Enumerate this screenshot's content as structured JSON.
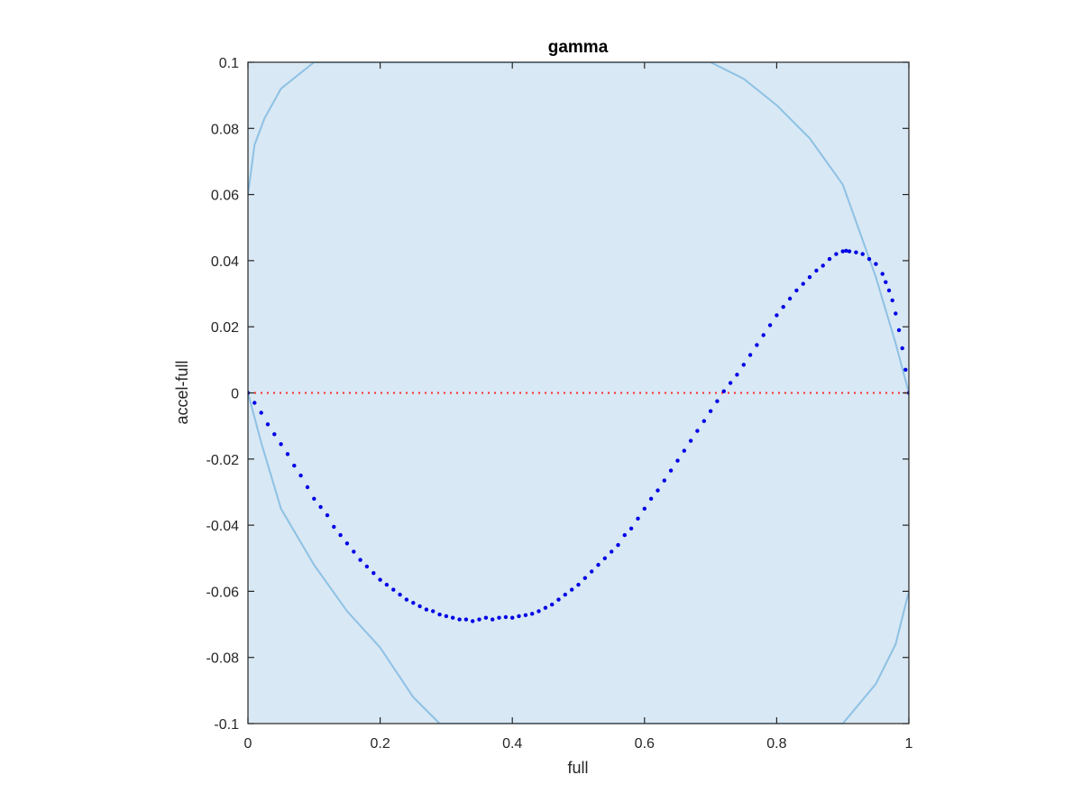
{
  "chart_data": {
    "type": "scatter",
    "title": "gamma",
    "xlabel": "full",
    "ylabel": "accel-full",
    "xlim": [
      0,
      1
    ],
    "ylim": [
      -0.1,
      0.1
    ],
    "xticks": [
      0,
      0.2,
      0.4,
      0.6,
      0.8,
      1
    ],
    "xtick_labels": [
      "0",
      "0.2",
      "0.4",
      "0.6",
      "0.8",
      "1"
    ],
    "yticks": [
      -0.1,
      -0.08,
      -0.06,
      -0.04,
      -0.02,
      0,
      0.02,
      0.04,
      0.06,
      0.08,
      0.1
    ],
    "ytick_labels": [
      "-0.1",
      "-0.08",
      "-0.06",
      "-0.04",
      "-0.02",
      "0",
      "0.02",
      "0.04",
      "0.06",
      "0.08",
      "0.1"
    ],
    "grid": false,
    "legend": "none",
    "colors": {
      "points": "#0000e6",
      "zero_line": "#ff2a2a",
      "band_fill": "#d8e8f4",
      "band_edge": "#8ec1e4",
      "axes": "#262626"
    },
    "reference_line": {
      "y": 0,
      "style": "dotted"
    },
    "confidence_band": {
      "upper": [
        [
          0,
          0.06
        ],
        [
          0.01,
          0.075
        ],
        [
          0.025,
          0.083
        ],
        [
          0.05,
          0.092
        ],
        [
          0.1,
          0.1
        ],
        [
          0.7,
          0.1
        ],
        [
          0.75,
          0.095
        ],
        [
          0.8,
          0.087
        ],
        [
          0.85,
          0.077
        ],
        [
          0.9,
          0.063
        ],
        [
          0.95,
          0.035
        ],
        [
          0.98,
          0.015
        ],
        [
          1,
          0
        ]
      ],
      "lower": [
        [
          0,
          0
        ],
        [
          0.02,
          -0.015
        ],
        [
          0.05,
          -0.035
        ],
        [
          0.1,
          -0.052
        ],
        [
          0.15,
          -0.066
        ],
        [
          0.2,
          -0.077
        ],
        [
          0.25,
          -0.092
        ],
        [
          0.29,
          -0.1
        ],
        [
          0.9,
          -0.1
        ],
        [
          0.95,
          -0.088
        ],
        [
          0.98,
          -0.076
        ],
        [
          1,
          -0.06
        ]
      ]
    },
    "series": [
      {
        "points": [
          [
            0.0,
            0.0
          ],
          [
            0.01,
            -0.003
          ],
          [
            0.02,
            -0.006
          ],
          [
            0.03,
            -0.0095
          ],
          [
            0.04,
            -0.0125
          ],
          [
            0.05,
            -0.0155
          ],
          [
            0.06,
            -0.0185
          ],
          [
            0.07,
            -0.022
          ],
          [
            0.08,
            -0.025
          ],
          [
            0.09,
            -0.0285
          ],
          [
            0.1,
            -0.032
          ],
          [
            0.11,
            -0.0345
          ],
          [
            0.12,
            -0.037
          ],
          [
            0.13,
            -0.0405
          ],
          [
            0.14,
            -0.043
          ],
          [
            0.15,
            -0.0455
          ],
          [
            0.16,
            -0.048
          ],
          [
            0.17,
            -0.0505
          ],
          [
            0.18,
            -0.0525
          ],
          [
            0.19,
            -0.0545
          ],
          [
            0.2,
            -0.0565
          ],
          [
            0.21,
            -0.058
          ],
          [
            0.22,
            -0.0595
          ],
          [
            0.23,
            -0.061
          ],
          [
            0.24,
            -0.0625
          ],
          [
            0.25,
            -0.0635
          ],
          [
            0.26,
            -0.0645
          ],
          [
            0.27,
            -0.0655
          ],
          [
            0.28,
            -0.066
          ],
          [
            0.29,
            -0.067
          ],
          [
            0.3,
            -0.0675
          ],
          [
            0.31,
            -0.068
          ],
          [
            0.32,
            -0.0685
          ],
          [
            0.33,
            -0.0685
          ],
          [
            0.34,
            -0.069
          ],
          [
            0.35,
            -0.0685
          ],
          [
            0.36,
            -0.068
          ],
          [
            0.37,
            -0.0685
          ],
          [
            0.38,
            -0.068
          ],
          [
            0.39,
            -0.0678
          ],
          [
            0.4,
            -0.068
          ],
          [
            0.41,
            -0.0675
          ],
          [
            0.42,
            -0.0672
          ],
          [
            0.43,
            -0.0668
          ],
          [
            0.44,
            -0.066
          ],
          [
            0.45,
            -0.065
          ],
          [
            0.46,
            -0.064
          ],
          [
            0.47,
            -0.0625
          ],
          [
            0.48,
            -0.061
          ],
          [
            0.49,
            -0.0595
          ],
          [
            0.5,
            -0.058
          ],
          [
            0.51,
            -0.056
          ],
          [
            0.52,
            -0.054
          ],
          [
            0.53,
            -0.052
          ],
          [
            0.54,
            -0.05
          ],
          [
            0.55,
            -0.048
          ],
          [
            0.56,
            -0.046
          ],
          [
            0.57,
            -0.043
          ],
          [
            0.58,
            -0.041
          ],
          [
            0.59,
            -0.038
          ],
          [
            0.6,
            -0.035
          ],
          [
            0.61,
            -0.032
          ],
          [
            0.62,
            -0.0295
          ],
          [
            0.63,
            -0.0265
          ],
          [
            0.64,
            -0.0235
          ],
          [
            0.65,
            -0.0205
          ],
          [
            0.66,
            -0.0175
          ],
          [
            0.67,
            -0.0145
          ],
          [
            0.68,
            -0.0115
          ],
          [
            0.69,
            -0.0085
          ],
          [
            0.7,
            -0.0055
          ],
          [
            0.71,
            -0.0025
          ],
          [
            0.72,
            0.0005
          ],
          [
            0.73,
            0.003
          ],
          [
            0.74,
            0.0055
          ],
          [
            0.75,
            0.0085
          ],
          [
            0.76,
            0.0115
          ],
          [
            0.77,
            0.0145
          ],
          [
            0.78,
            0.0175
          ],
          [
            0.79,
            0.0205
          ],
          [
            0.8,
            0.0235
          ],
          [
            0.81,
            0.026
          ],
          [
            0.82,
            0.0285
          ],
          [
            0.83,
            0.031
          ],
          [
            0.84,
            0.033
          ],
          [
            0.85,
            0.035
          ],
          [
            0.86,
            0.037
          ],
          [
            0.87,
            0.0385
          ],
          [
            0.88,
            0.0405
          ],
          [
            0.89,
            0.042
          ],
          [
            0.9,
            0.0428
          ],
          [
            0.905,
            0.043
          ],
          [
            0.91,
            0.0428
          ],
          [
            0.92,
            0.0425
          ],
          [
            0.93,
            0.042
          ],
          [
            0.94,
            0.0405
          ],
          [
            0.95,
            0.039
          ],
          [
            0.96,
            0.036
          ],
          [
            0.965,
            0.0335
          ],
          [
            0.97,
            0.031
          ],
          [
            0.975,
            0.028
          ],
          [
            0.98,
            0.024
          ],
          [
            0.985,
            0.019
          ],
          [
            0.99,
            0.0135
          ],
          [
            0.995,
            0.007
          ],
          [
            1.0,
            0.0
          ]
        ]
      }
    ]
  }
}
